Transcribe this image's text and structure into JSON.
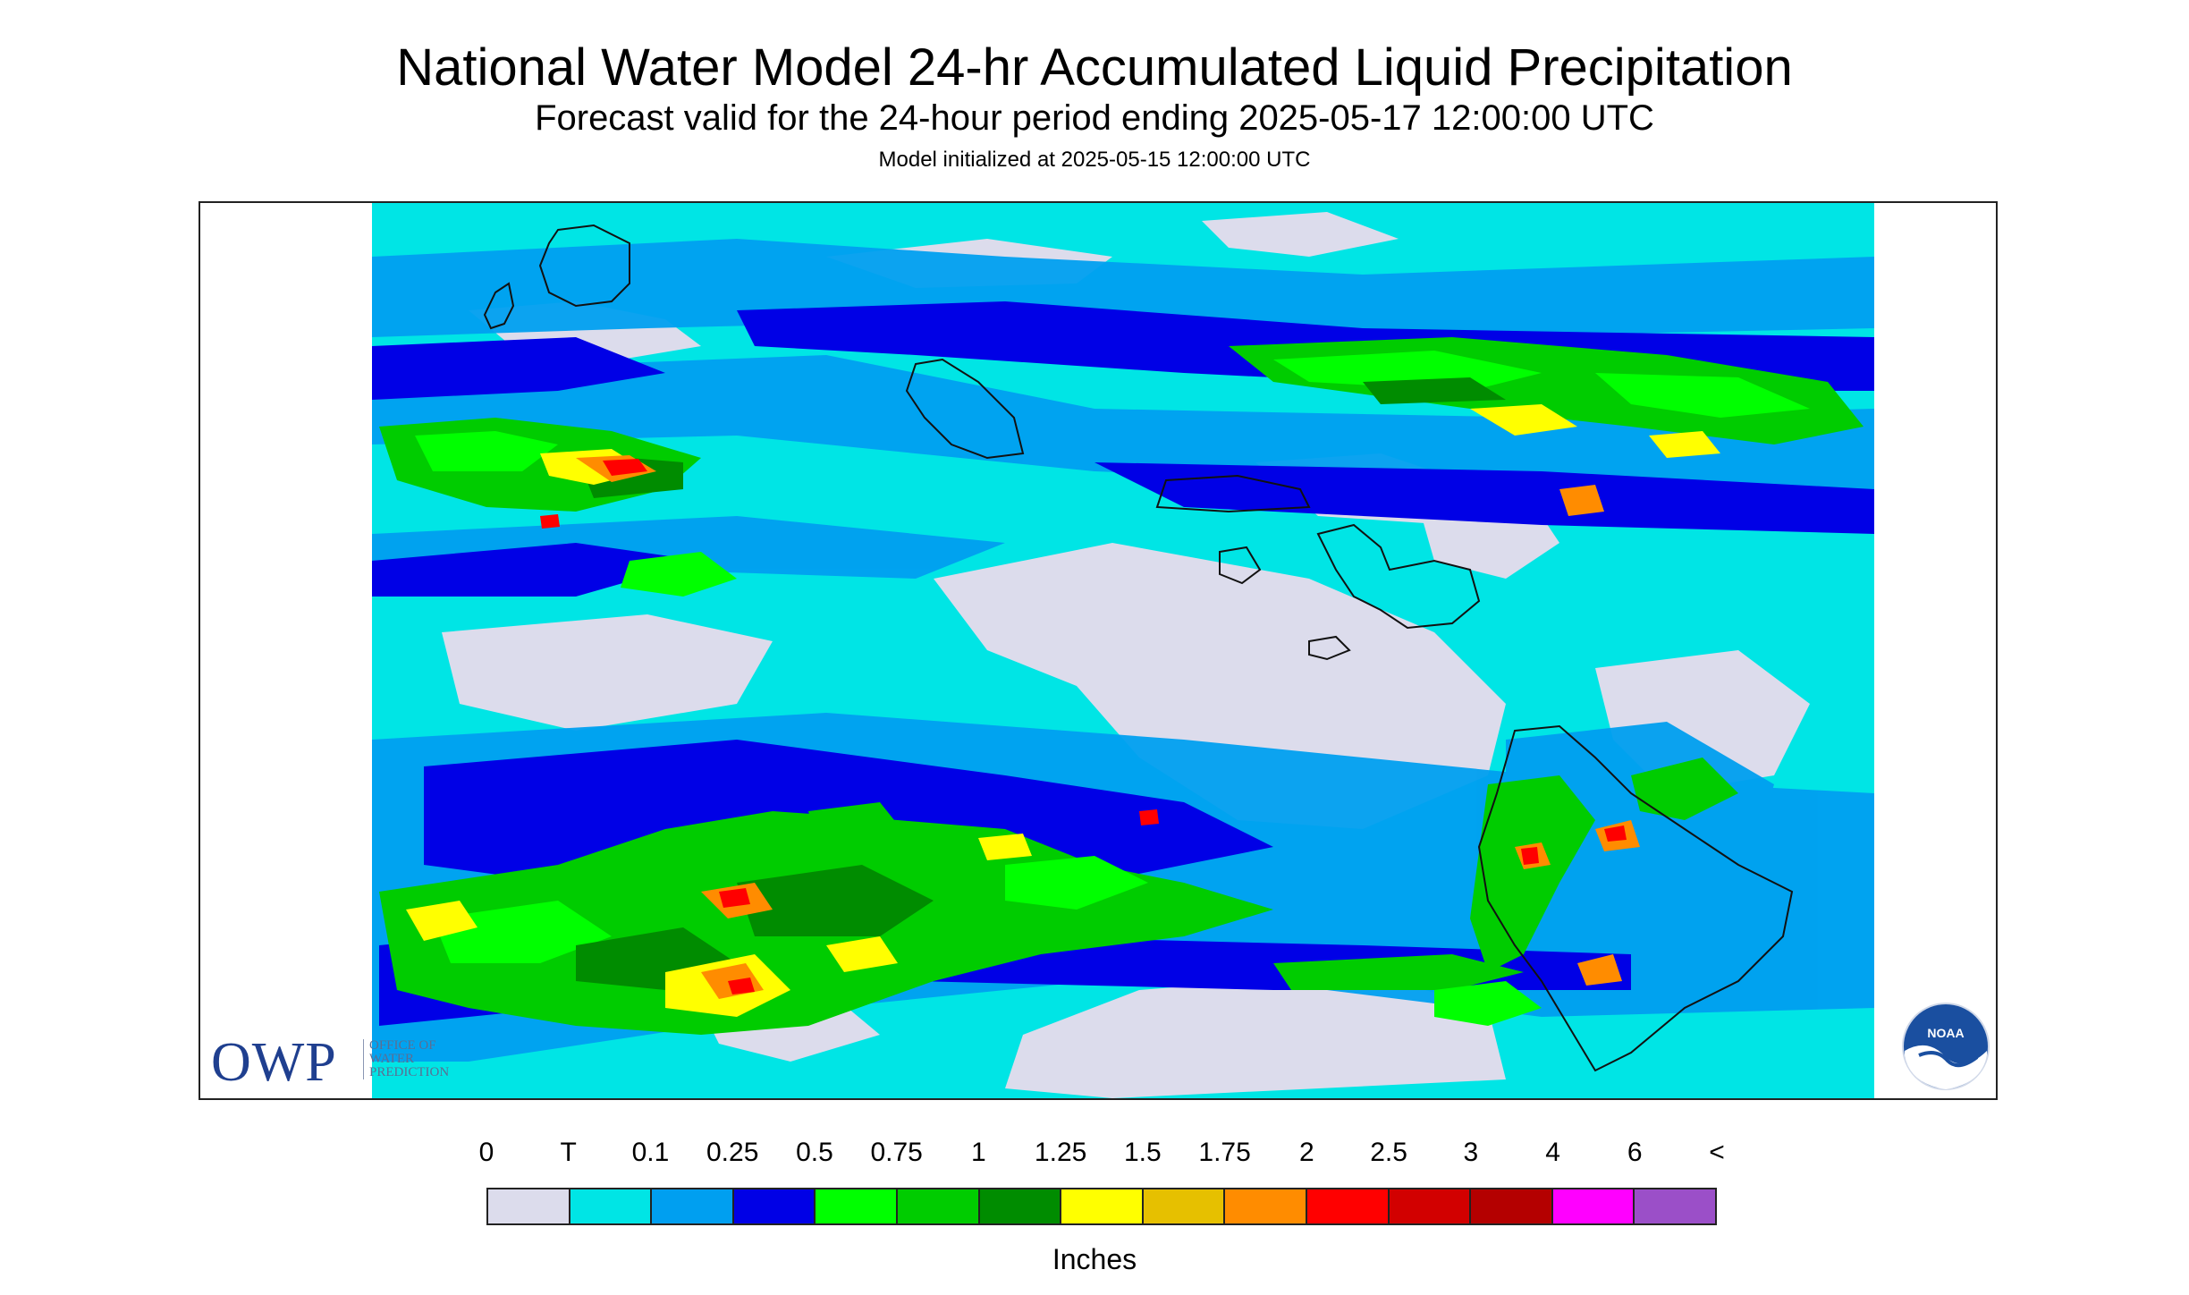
{
  "header": {
    "title": "National Water Model 24-hr Accumulated Liquid Precipitation",
    "subtitle": "Forecast valid for the 24-hour period ending 2025-05-17 12:00:00 UTC",
    "init": "Model initialized at 2025-05-15 12:00:00 UTC"
  },
  "logos": {
    "owp_big": "OWP",
    "owp_small": [
      "OFFICE OF",
      "WATER",
      "PREDICTION"
    ],
    "noaa": "NOAA"
  },
  "legend": {
    "labels": [
      "0",
      "T",
      "0.1",
      "0.25",
      "0.5",
      "0.75",
      "1",
      "1.25",
      "1.5",
      "1.75",
      "2",
      "2.5",
      "3",
      "4",
      "6",
      "<"
    ],
    "colors": [
      "#dcdcec",
      "#00e5e5",
      "#009ff0",
      "#0000e6",
      "#00ff00",
      "#00cc00",
      "#008c00",
      "#ffff00",
      "#e6c000",
      "#ff8c00",
      "#ff0000",
      "#d20000",
      "#b40000",
      "#ff00ff",
      "#9b4fc8"
    ],
    "units": "Inches"
  },
  "map_colors": {
    "background": "#00e5e5",
    "none": "#dcdcec",
    "light": "#009ff0",
    "moderate": "#0000e6",
    "heavy1": "#00ff00",
    "heavy2": "#00cc00",
    "heavy3": "#008c00",
    "vheavy1": "#ffff00",
    "vheavy2": "#e6c000",
    "vheavy3": "#ff8c00",
    "extreme1": "#ff0000",
    "extreme2": "#d20000",
    "coast": "#111111"
  }
}
